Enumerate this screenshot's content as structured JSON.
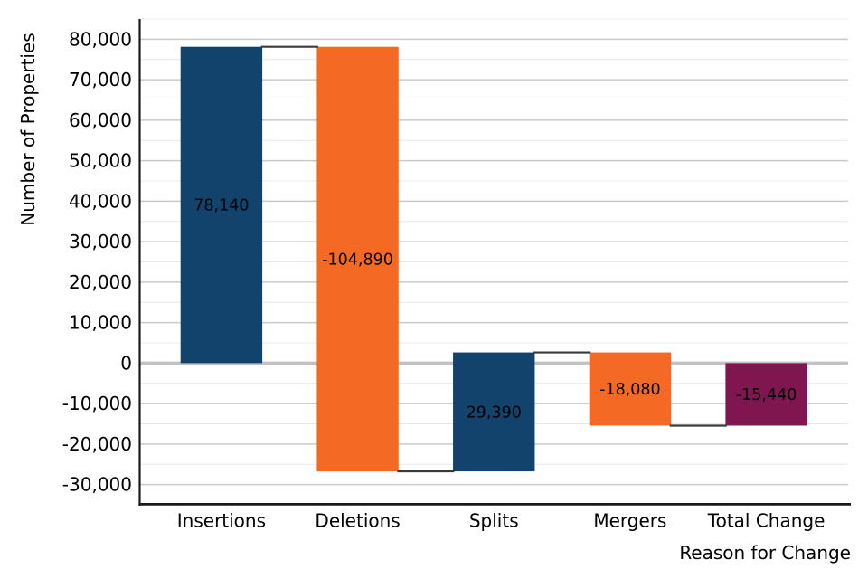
{
  "chart_data": {
    "type": "bar",
    "subtype": "waterfall",
    "title": "",
    "xlabel": "Reason for Change",
    "ylabel": "Number of Properties",
    "categories": [
      "Insertions",
      "Deletions",
      "Splits",
      "Mergers",
      "Total Change"
    ],
    "values": [
      78140,
      -104890,
      29390,
      -18080,
      -15440
    ],
    "bars": [
      {
        "category": "Insertions",
        "value": 78140,
        "label": "78,140",
        "from": 0,
        "to": 78140,
        "role": "increase"
      },
      {
        "category": "Deletions",
        "value": -104890,
        "label": "-104,890",
        "from": 78140,
        "to": -26750,
        "role": "decrease"
      },
      {
        "category": "Splits",
        "value": 29390,
        "label": "29,390",
        "from": -26750,
        "to": 2640,
        "role": "increase"
      },
      {
        "category": "Mergers",
        "value": -18080,
        "label": "-18,080",
        "from": 2640,
        "to": -15440,
        "role": "decrease"
      },
      {
        "category": "Total Change",
        "value": -15440,
        "label": "-15,440",
        "from": 0,
        "to": -15440,
        "role": "total"
      }
    ],
    "palette": {
      "increase": "#12436D",
      "decrease": "#F46A25",
      "total": "#801650"
    },
    "colors": {
      "major_grid": "#cacaca",
      "minor_grid": "#e8e8e8",
      "zero_line": "#c2c2c2",
      "spine": "#1a1a1a",
      "connector": "#3a3a3a",
      "text": "#000000"
    },
    "y_axis": {
      "min": -35000,
      "max": 85000,
      "major_step": 10000,
      "minor_step": 5000,
      "tick_values": [
        80000,
        70000,
        60000,
        50000,
        40000,
        30000,
        20000,
        10000,
        0,
        -10000,
        -20000,
        -30000
      ],
      "tick_labels": [
        "80,000",
        "70,000",
        "60,000",
        "50,000",
        "40,000",
        "30,000",
        "20,000",
        "10,000",
        "0",
        "-10,000",
        "-20,000",
        "-30,000"
      ]
    },
    "x_axis": {
      "categories": [
        "Insertions",
        "Deletions",
        "Splits",
        "Mergers",
        "Total Change"
      ]
    },
    "legend": null,
    "grid": {
      "major": true,
      "minor": true
    },
    "zero_line": true,
    "connectors": true
  }
}
